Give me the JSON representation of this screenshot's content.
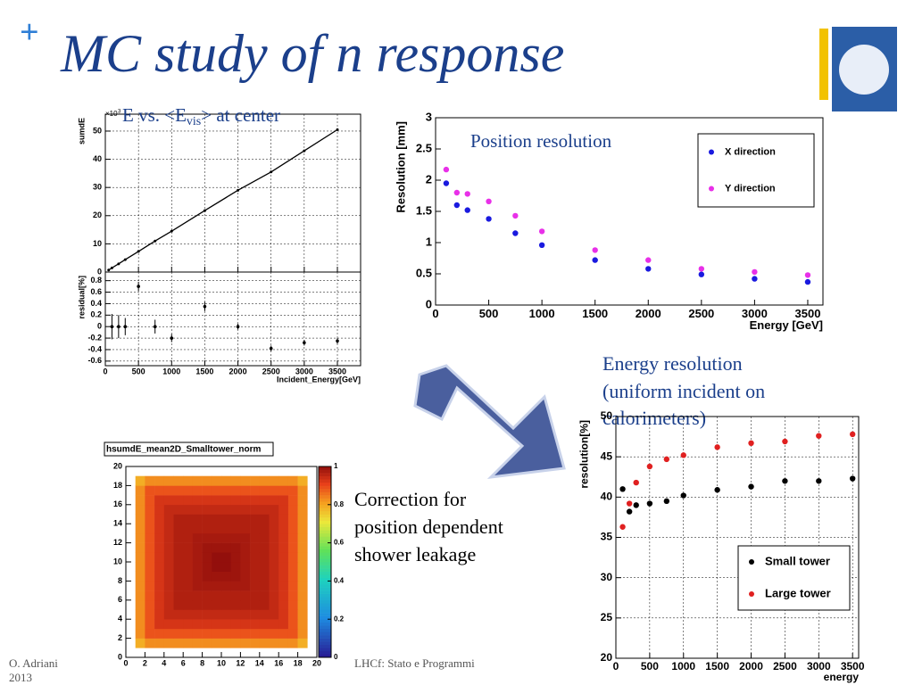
{
  "slide": {
    "bullet": "+",
    "title": "MC study of n response",
    "energy_caption": [
      "Energy resolution",
      "(uniform incident  on",
      "calorimeters)"
    ],
    "correction_caption": [
      "Correction for",
      "position dependent",
      "shower leakage"
    ],
    "footer_author": [
      "O. Adriani",
      "2013"
    ],
    "footer_center": "LHCf: Stato e Programmi"
  },
  "chart_data": [
    {
      "type": "line",
      "title": [
        "E vs. <E",
        "vis",
        "> at center"
      ],
      "ylabel": "sumdE",
      "y_multiplier": [
        "×10",
        "3"
      ],
      "x": [
        50,
        100,
        200,
        300,
        500,
        750,
        1000,
        1500,
        2000,
        2500,
        3000,
        3500
      ],
      "values": [
        0.73,
        1.46,
        2.9,
        4.4,
        7.3,
        11,
        14.5,
        21.8,
        29,
        35.5,
        43,
        50.5
      ],
      "color": "#000000",
      "xlim": [
        0,
        3850
      ],
      "ylim": [
        0,
        56
      ],
      "yticks": [
        0,
        10,
        20,
        30,
        40,
        50
      ],
      "grid": true
    },
    {
      "type": "scatter",
      "ylabel": "residual[%]",
      "xlabel": "Incident_Energy[GeV]",
      "x": [
        100,
        200,
        300,
        500,
        750,
        1000,
        1500,
        2000,
        2500,
        3000,
        3500
      ],
      "values": [
        0,
        0,
        0,
        0.7,
        0,
        -0.2,
        0.35,
        0,
        -0.38,
        -0.28,
        -0.25
      ],
      "errors": [
        0.22,
        0.2,
        0.15,
        0.08,
        0.12,
        0.07,
        0.08,
        0.05,
        0.05,
        0.05,
        0.05
      ],
      "color": "#000000",
      "xlim": [
        0,
        3850
      ],
      "ylim": [
        -0.68,
        0.95
      ],
      "xticks": [
        0,
        500,
        1000,
        1500,
        2000,
        2500,
        3000,
        3500
      ],
      "yticks": [
        -0.6,
        -0.4,
        -0.2,
        0,
        0.2,
        0.4,
        0.6,
        0.8
      ],
      "grid": true
    },
    {
      "type": "scatter",
      "title": "Position resolution",
      "ylabel": "Resolution [mm]",
      "xlabel": "Energy [GeV]",
      "x": [
        100,
        200,
        300,
        500,
        750,
        1000,
        1500,
        2000,
        2500,
        3000,
        3500
      ],
      "series": [
        {
          "name": "X direction",
          "color": "#1a1adf",
          "values": [
            1.95,
            1.6,
            1.52,
            1.38,
            1.15,
            0.96,
            0.72,
            0.58,
            0.49,
            0.42,
            0.37
          ]
        },
        {
          "name": "Y direction",
          "color": "#e830e8",
          "values": [
            2.17,
            1.8,
            1.78,
            1.66,
            1.43,
            1.18,
            0.88,
            0.72,
            0.58,
            0.53,
            0.48
          ]
        }
      ],
      "xlim": [
        0,
        3643
      ],
      "ylim": [
        0,
        3
      ],
      "xticks": [
        0,
        500,
        1000,
        1500,
        2000,
        2500,
        3000,
        3500
      ],
      "yticks": [
        0,
        0.5,
        1,
        1.5,
        2,
        2.5,
        3
      ],
      "grid": false,
      "legend": "upper right"
    },
    {
      "type": "scatter",
      "ylabel": "resolution[%]",
      "xlabel": "energy",
      "x": [
        100,
        200,
        300,
        500,
        750,
        1000,
        1500,
        2000,
        2500,
        3000,
        3500
      ],
      "series": [
        {
          "name": "Small tower",
          "color": "#000000",
          "values": [
            41,
            38.2,
            39,
            39.2,
            39.5,
            40.2,
            40.9,
            41.3,
            42,
            42,
            42.3
          ]
        },
        {
          "name": "Large tower",
          "color": "#e02020",
          "values": [
            36.3,
            39.2,
            41.8,
            43.8,
            44.7,
            45.2,
            46.2,
            46.7,
            46.9,
            47.6,
            47.8
          ]
        }
      ],
      "xlim": [
        0,
        3590
      ],
      "ylim": [
        20,
        50
      ],
      "xticks": [
        0,
        500,
        1000,
        1500,
        2000,
        2500,
        3000,
        3500
      ],
      "yticks": [
        20,
        25,
        30,
        35,
        40,
        45,
        50
      ],
      "grid": true,
      "legend": "lower right"
    },
    {
      "type": "heatmap",
      "title": "hsumdE_mean2D_Smalltower_norm",
      "xbins": [
        1,
        2,
        3,
        4,
        5,
        6,
        7,
        8,
        9,
        10,
        11,
        12,
        13,
        14,
        15,
        16,
        17,
        18,
        19
      ],
      "ybins": [
        1,
        2,
        3,
        4,
        5,
        6,
        7,
        8,
        9,
        10,
        11,
        12,
        13,
        14,
        15,
        16,
        17,
        18,
        19
      ],
      "z": [
        [
          0.78,
          0.82,
          0.82,
          0.82,
          0.82,
          0.82,
          0.82,
          0.82,
          0.82,
          0.82,
          0.82,
          0.82,
          0.82,
          0.82,
          0.82,
          0.82,
          0.82,
          0.78
        ],
        [
          0.82,
          0.88,
          0.88,
          0.88,
          0.88,
          0.88,
          0.88,
          0.88,
          0.88,
          0.88,
          0.88,
          0.88,
          0.88,
          0.88,
          0.88,
          0.88,
          0.88,
          0.82
        ],
        [
          0.82,
          0.88,
          0.92,
          0.92,
          0.92,
          0.92,
          0.92,
          0.92,
          0.92,
          0.92,
          0.92,
          0.92,
          0.92,
          0.92,
          0.92,
          0.92,
          0.88,
          0.82
        ],
        [
          0.82,
          0.88,
          0.92,
          0.94,
          0.94,
          0.94,
          0.94,
          0.94,
          0.94,
          0.94,
          0.94,
          0.94,
          0.94,
          0.94,
          0.94,
          0.92,
          0.88,
          0.82
        ],
        [
          0.82,
          0.88,
          0.92,
          0.94,
          0.96,
          0.96,
          0.96,
          0.96,
          0.96,
          0.96,
          0.96,
          0.96,
          0.96,
          0.96,
          0.94,
          0.92,
          0.88,
          0.82
        ],
        [
          0.82,
          0.88,
          0.92,
          0.94,
          0.96,
          0.96,
          0.96,
          0.96,
          0.96,
          0.96,
          0.96,
          0.96,
          0.96,
          0.96,
          0.94,
          0.92,
          0.88,
          0.82
        ],
        [
          0.82,
          0.88,
          0.92,
          0.94,
          0.96,
          0.96,
          0.97,
          0.97,
          0.97,
          0.97,
          0.97,
          0.97,
          0.96,
          0.96,
          0.94,
          0.92,
          0.88,
          0.82
        ],
        [
          0.82,
          0.88,
          0.92,
          0.94,
          0.96,
          0.96,
          0.97,
          0.98,
          0.98,
          0.98,
          0.98,
          0.97,
          0.96,
          0.96,
          0.94,
          0.92,
          0.88,
          0.82
        ],
        [
          0.82,
          0.88,
          0.92,
          0.94,
          0.96,
          0.96,
          0.97,
          0.98,
          0.99,
          0.99,
          0.98,
          0.97,
          0.96,
          0.96,
          0.94,
          0.92,
          0.88,
          0.82
        ],
        [
          0.82,
          0.88,
          0.92,
          0.94,
          0.96,
          0.96,
          0.97,
          0.98,
          0.99,
          0.99,
          0.98,
          0.97,
          0.96,
          0.96,
          0.94,
          0.92,
          0.88,
          0.82
        ],
        [
          0.82,
          0.88,
          0.92,
          0.94,
          0.96,
          0.96,
          0.97,
          0.98,
          0.98,
          0.98,
          0.98,
          0.97,
          0.96,
          0.96,
          0.94,
          0.92,
          0.88,
          0.82
        ],
        [
          0.82,
          0.88,
          0.92,
          0.94,
          0.96,
          0.96,
          0.97,
          0.97,
          0.97,
          0.97,
          0.97,
          0.97,
          0.96,
          0.96,
          0.94,
          0.92,
          0.88,
          0.82
        ],
        [
          0.82,
          0.88,
          0.92,
          0.94,
          0.96,
          0.96,
          0.96,
          0.96,
          0.96,
          0.96,
          0.96,
          0.96,
          0.96,
          0.96,
          0.94,
          0.92,
          0.88,
          0.82
        ],
        [
          0.82,
          0.88,
          0.92,
          0.94,
          0.96,
          0.96,
          0.96,
          0.96,
          0.96,
          0.96,
          0.96,
          0.96,
          0.96,
          0.96,
          0.94,
          0.92,
          0.88,
          0.82
        ],
        [
          0.82,
          0.88,
          0.92,
          0.94,
          0.94,
          0.94,
          0.94,
          0.94,
          0.94,
          0.94,
          0.94,
          0.94,
          0.94,
          0.94,
          0.94,
          0.92,
          0.88,
          0.82
        ],
        [
          0.82,
          0.88,
          0.92,
          0.92,
          0.92,
          0.92,
          0.92,
          0.92,
          0.92,
          0.92,
          0.92,
          0.92,
          0.92,
          0.92,
          0.92,
          0.92,
          0.88,
          0.82
        ],
        [
          0.82,
          0.88,
          0.88,
          0.88,
          0.88,
          0.88,
          0.88,
          0.88,
          0.88,
          0.88,
          0.88,
          0.88,
          0.88,
          0.88,
          0.88,
          0.88,
          0.88,
          0.82
        ],
        [
          0.78,
          0.82,
          0.82,
          0.82,
          0.82,
          0.82,
          0.82,
          0.82,
          0.82,
          0.82,
          0.82,
          0.82,
          0.82,
          0.82,
          0.82,
          0.82,
          0.82,
          0.78
        ]
      ],
      "xlim": [
        0,
        20
      ],
      "ylim": [
        0,
        20
      ],
      "zlim": [
        0,
        1
      ],
      "xticks": [
        0,
        2,
        4,
        6,
        8,
        10,
        12,
        14,
        16,
        18,
        20
      ],
      "yticks": [
        0,
        2,
        4,
        6,
        8,
        10,
        12,
        14,
        16,
        18,
        20
      ],
      "zticks": [
        0,
        0.2,
        0.4,
        0.6,
        0.8,
        1
      ]
    }
  ]
}
